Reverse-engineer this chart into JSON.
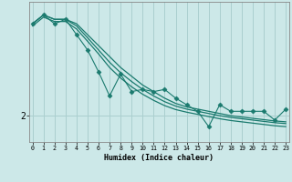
{
  "xlabel": "Humidex (Indice chaleur)",
  "x_values": [
    0,
    1,
    2,
    3,
    4,
    5,
    6,
    7,
    8,
    9,
    10,
    11,
    12,
    13,
    14,
    15,
    16,
    17,
    18,
    19,
    20,
    21,
    22,
    23
  ],
  "zigzag_y": [
    4.1,
    4.3,
    4.1,
    4.2,
    3.85,
    3.5,
    3.0,
    2.45,
    2.95,
    2.55,
    2.6,
    2.55,
    2.6,
    2.4,
    2.25,
    2.1,
    1.75,
    2.25,
    2.1,
    2.1,
    2.1,
    2.1,
    1.9,
    2.15
  ],
  "trend1_y": [
    4.1,
    4.3,
    4.2,
    4.2,
    4.1,
    3.85,
    3.6,
    3.35,
    3.1,
    2.9,
    2.7,
    2.55,
    2.4,
    2.28,
    2.2,
    2.15,
    2.1,
    2.05,
    2.0,
    1.97,
    1.94,
    1.91,
    1.88,
    1.86
  ],
  "trend2_y": [
    4.1,
    4.3,
    4.2,
    4.2,
    4.05,
    3.78,
    3.5,
    3.22,
    2.98,
    2.78,
    2.6,
    2.45,
    2.32,
    2.22,
    2.15,
    2.1,
    2.05,
    2.0,
    1.96,
    1.93,
    1.9,
    1.87,
    1.84,
    1.82
  ],
  "trend3_y": [
    4.05,
    4.25,
    4.15,
    4.15,
    3.98,
    3.7,
    3.41,
    3.1,
    2.86,
    2.66,
    2.49,
    2.35,
    2.23,
    2.14,
    2.08,
    2.03,
    1.98,
    1.93,
    1.89,
    1.86,
    1.83,
    1.8,
    1.77,
    1.75
  ],
  "line_color": "#1a7a6e",
  "bg_color": "#cce8e8",
  "grid_color": "#aacfcf",
  "ytick_label": "2",
  "ytick_val": 2.0,
  "ylim": [
    1.4,
    4.6
  ],
  "xlim": [
    -0.3,
    23.3
  ]
}
